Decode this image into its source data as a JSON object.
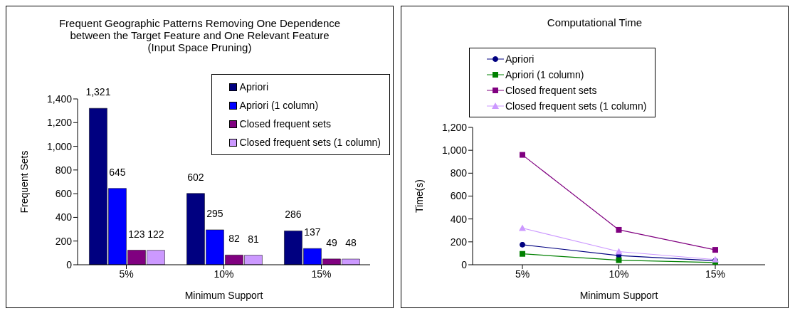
{
  "chart_data": [
    {
      "type": "bar",
      "title": "Frequent Geographic Patterns Removing One Dependence between the Target Feature and One Relevant Feature (Input Space Pruning)",
      "xlabel": "Minimum Support",
      "ylabel": "Frequent Sets",
      "categories": [
        "5%",
        "10%",
        "15%"
      ],
      "series": [
        {
          "name": "Apriori",
          "color": "#000080",
          "values": [
            1321,
            602,
            286
          ],
          "value_labels": [
            "1,321",
            "602",
            "286"
          ]
        },
        {
          "name": "Apriori (1 column)",
          "color": "#0000ff",
          "values": [
            645,
            295,
            137
          ],
          "value_labels": [
            "645",
            "295",
            "137"
          ]
        },
        {
          "name": "Closed frequent sets",
          "color": "#800080",
          "values": [
            123,
            82,
            49
          ],
          "value_labels": [
            "123",
            "82",
            "49"
          ]
        },
        {
          "name": "Closed frequent sets (1 column)",
          "color": "#cc99ff",
          "values": [
            122,
            81,
            48
          ],
          "value_labels": [
            "122",
            "81",
            "48"
          ]
        }
      ],
      "ylim": [
        0,
        1400
      ],
      "yticks": [
        0,
        200,
        400,
        600,
        800,
        {
          "value": 1000,
          "label": "1,000"
        },
        {
          "value": 1200,
          "label": "1,200"
        },
        {
          "value": 1400,
          "label": "1,400"
        }
      ],
      "legend": "top right",
      "grid": false
    },
    {
      "type": "line",
      "title": "Computational Time",
      "xlabel": "Minimum Support",
      "ylabel": "Time(s)",
      "categories": [
        "5%",
        "10%",
        "15%"
      ],
      "series": [
        {
          "name": "Apriori",
          "color": "#000080",
          "marker": "circle",
          "values": [
            175,
            80,
            35
          ]
        },
        {
          "name": "Apriori (1 column)",
          "color": "#008000",
          "marker": "square",
          "values": [
            95,
            40,
            20
          ]
        },
        {
          "name": "Closed frequent sets",
          "color": "#800080",
          "marker": "square",
          "values": [
            960,
            305,
            130
          ]
        },
        {
          "name": "Closed frequent sets (1 column)",
          "color": "#cc99ff",
          "marker": "triangle",
          "values": [
            320,
            115,
            45
          ]
        }
      ],
      "ylim": [
        0,
        1200
      ],
      "yticks": [
        0,
        200,
        400,
        600,
        800,
        {
          "value": 1000,
          "label": "1,000"
        },
        {
          "value": 1200,
          "label": "1,200"
        }
      ],
      "legend": "top",
      "grid": false
    }
  ]
}
